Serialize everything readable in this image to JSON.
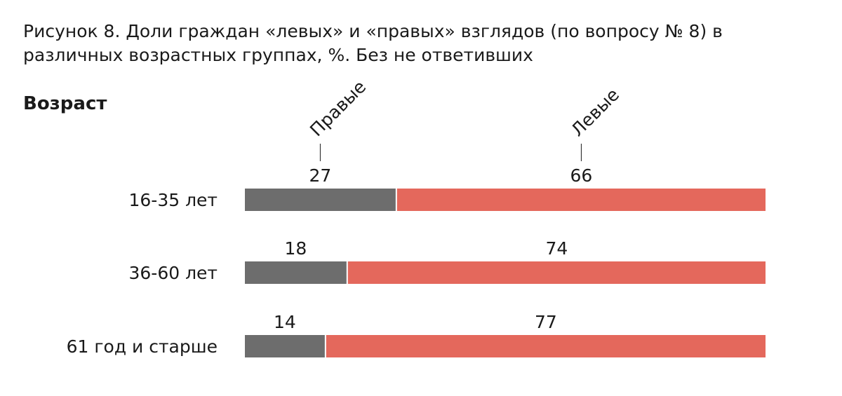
{
  "chart_data": {
    "type": "bar",
    "title": "Рисунок 8. Доли граждан «левых» и «правых» взглядов (по вопросу № 8) в различных возрастных группах, %. Без не ответивших",
    "y_label": "Возраст",
    "categories": [
      "16-35 лет",
      "36-60 лет",
      "61 год и старше"
    ],
    "series": [
      {
        "name": "Правые",
        "color": "#6d6d6d",
        "values": [
          27,
          18,
          14
        ]
      },
      {
        "name": "Левые",
        "color": "#e4685c",
        "values": [
          66,
          74,
          77
        ]
      }
    ]
  }
}
